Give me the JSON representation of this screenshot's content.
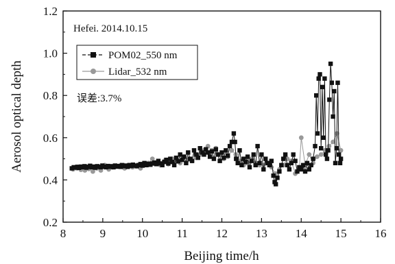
{
  "chart_data": {
    "type": "scatter",
    "title": "",
    "xlabel": "Beijing time/h",
    "ylabel": "Aerosol optical depth",
    "xlim": [
      8,
      16
    ],
    "ylim": [
      0.2,
      1.2
    ],
    "xticks": [
      8,
      9,
      10,
      11,
      12,
      13,
      14,
      15,
      16
    ],
    "yticks": [
      0.2,
      0.4,
      0.6,
      0.8,
      1.0,
      1.2
    ],
    "xtick_labels": [
      "8",
      "9",
      "10",
      "11",
      "12",
      "13",
      "14",
      "15",
      "16"
    ],
    "ytick_labels": [
      "0.2",
      "0.4",
      "0.6",
      "0.8",
      "1.0",
      "1.2"
    ],
    "grid": false,
    "legend_position": "upper-left",
    "annotations": [
      "Hefei. 2014.10.15",
      "误差:3.7%"
    ],
    "colors": {
      "pom": "#111111",
      "lidar": "#999999"
    },
    "series": [
      {
        "name": "POM02_550 nm",
        "marker": "square",
        "color": "#111111",
        "x": [
          8.22,
          8.27,
          8.31,
          8.36,
          8.4,
          8.45,
          8.5,
          8.54,
          8.59,
          8.63,
          8.68,
          8.72,
          8.77,
          8.81,
          8.86,
          8.9,
          8.95,
          8.99,
          9.04,
          9.08,
          9.13,
          9.17,
          9.22,
          9.27,
          9.31,
          9.36,
          9.4,
          9.45,
          9.49,
          9.54,
          9.58,
          9.63,
          9.67,
          9.72,
          9.76,
          9.81,
          9.86,
          9.9,
          9.95,
          10.0,
          10.05,
          10.1,
          10.15,
          10.2,
          10.25,
          10.3,
          10.35,
          10.4,
          10.45,
          10.5,
          10.55,
          10.6,
          10.65,
          10.7,
          10.75,
          10.8,
          10.85,
          10.9,
          10.95,
          11.0,
          11.05,
          11.1,
          11.15,
          11.2,
          11.25,
          11.3,
          11.35,
          11.4,
          11.45,
          11.5,
          11.55,
          11.6,
          11.65,
          11.7,
          11.75,
          11.8,
          11.85,
          11.9,
          11.95,
          12.0,
          12.05,
          12.1,
          12.15,
          12.2,
          12.25,
          12.3,
          12.33,
          12.36,
          12.4,
          12.45,
          12.5,
          12.55,
          12.6,
          12.65,
          12.7,
          12.75,
          12.8,
          12.85,
          12.9,
          12.95,
          13.0,
          13.05,
          13.1,
          13.15,
          13.2,
          13.25,
          13.3,
          13.33,
          13.36,
          13.4,
          13.45,
          13.5,
          13.55,
          13.6,
          13.65,
          13.7,
          13.75,
          13.8,
          13.85,
          13.9,
          13.95,
          14.0,
          14.05,
          14.1,
          14.15,
          14.2,
          14.25,
          14.3,
          14.35,
          14.38,
          14.41,
          14.44,
          14.47,
          14.5,
          14.53,
          14.56,
          14.59,
          14.62,
          14.65,
          14.68,
          14.71,
          14.74,
          14.77,
          14.8,
          14.83,
          14.86,
          14.89,
          14.92,
          14.95,
          14.98,
          15.0
        ],
        "y": [
          0.455,
          0.46,
          0.458,
          0.462,
          0.457,
          0.463,
          0.46,
          0.465,
          0.458,
          0.462,
          0.467,
          0.46,
          0.463,
          0.458,
          0.465,
          0.462,
          0.46,
          0.468,
          0.463,
          0.46,
          0.466,
          0.462,
          0.465,
          0.46,
          0.468,
          0.463,
          0.466,
          0.462,
          0.47,
          0.465,
          0.468,
          0.462,
          0.47,
          0.466,
          0.472,
          0.468,
          0.465,
          0.47,
          0.475,
          0.468,
          0.48,
          0.47,
          0.476,
          0.472,
          0.478,
          0.482,
          0.475,
          0.49,
          0.478,
          0.47,
          0.485,
          0.495,
          0.478,
          0.5,
          0.485,
          0.47,
          0.505,
          0.488,
          0.52,
          0.495,
          0.51,
          0.48,
          0.53,
          0.5,
          0.49,
          0.54,
          0.52,
          0.505,
          0.55,
          0.53,
          0.52,
          0.545,
          0.53,
          0.51,
          0.535,
          0.5,
          0.545,
          0.52,
          0.49,
          0.53,
          0.505,
          0.54,
          0.515,
          0.56,
          0.58,
          0.62,
          0.58,
          0.5,
          0.48,
          0.54,
          0.47,
          0.5,
          0.485,
          0.51,
          0.46,
          0.49,
          0.52,
          0.47,
          0.56,
          0.48,
          0.52,
          0.45,
          0.5,
          0.48,
          0.47,
          0.49,
          0.42,
          0.39,
          0.38,
          0.41,
          0.44,
          0.47,
          0.5,
          0.52,
          0.47,
          0.45,
          0.48,
          0.52,
          0.49,
          0.44,
          0.46,
          0.45,
          0.47,
          0.44,
          0.48,
          0.45,
          0.47,
          0.5,
          0.56,
          0.8,
          0.62,
          0.88,
          0.9,
          0.55,
          0.84,
          0.6,
          0.88,
          0.52,
          0.5,
          0.54,
          0.78,
          0.95,
          0.86,
          0.7,
          0.82,
          0.48,
          0.55,
          0.86,
          0.52,
          0.48,
          0.5
        ]
      },
      {
        "name": "Lidar_532 nm",
        "marker": "circle",
        "color": "#999999",
        "x": [
          8.25,
          8.35,
          8.45,
          8.55,
          8.65,
          8.75,
          8.85,
          8.95,
          9.05,
          9.15,
          9.25,
          9.35,
          9.45,
          9.55,
          9.65,
          9.75,
          9.85,
          9.95,
          10.05,
          10.15,
          10.25,
          10.35,
          10.45,
          10.55,
          10.65,
          10.75,
          10.85,
          10.95,
          11.05,
          11.15,
          11.25,
          11.35,
          11.45,
          11.55,
          11.65,
          11.75,
          11.85,
          11.95,
          12.05,
          12.15,
          12.25,
          12.35,
          12.45,
          12.55,
          12.65,
          12.75,
          12.85,
          12.95,
          13.05,
          13.15,
          13.25,
          13.35,
          13.45,
          13.55,
          13.65,
          13.75,
          13.85,
          13.95,
          14.0,
          14.1,
          14.2,
          14.3,
          14.4,
          14.5,
          14.6,
          14.7,
          14.8,
          14.9,
          15.0
        ],
        "y": [
          0.45,
          0.455,
          0.448,
          0.445,
          0.452,
          0.44,
          0.455,
          0.445,
          0.47,
          0.45,
          0.46,
          0.465,
          0.47,
          0.455,
          0.47,
          0.46,
          0.465,
          0.455,
          0.47,
          0.48,
          0.5,
          0.48,
          0.47,
          0.49,
          0.475,
          0.5,
          0.49,
          0.48,
          0.51,
          0.495,
          0.49,
          0.505,
          0.52,
          0.54,
          0.56,
          0.54,
          0.55,
          0.52,
          0.5,
          0.51,
          0.54,
          0.52,
          0.49,
          0.47,
          0.48,
          0.5,
          0.48,
          0.47,
          0.47,
          0.48,
          0.46,
          0.43,
          0.45,
          0.47,
          0.5,
          0.49,
          0.43,
          0.45,
          0.6,
          0.47,
          0.52,
          0.48,
          0.51,
          0.52,
          0.54,
          0.56,
          0.58,
          0.62,
          0.54
        ]
      }
    ]
  }
}
